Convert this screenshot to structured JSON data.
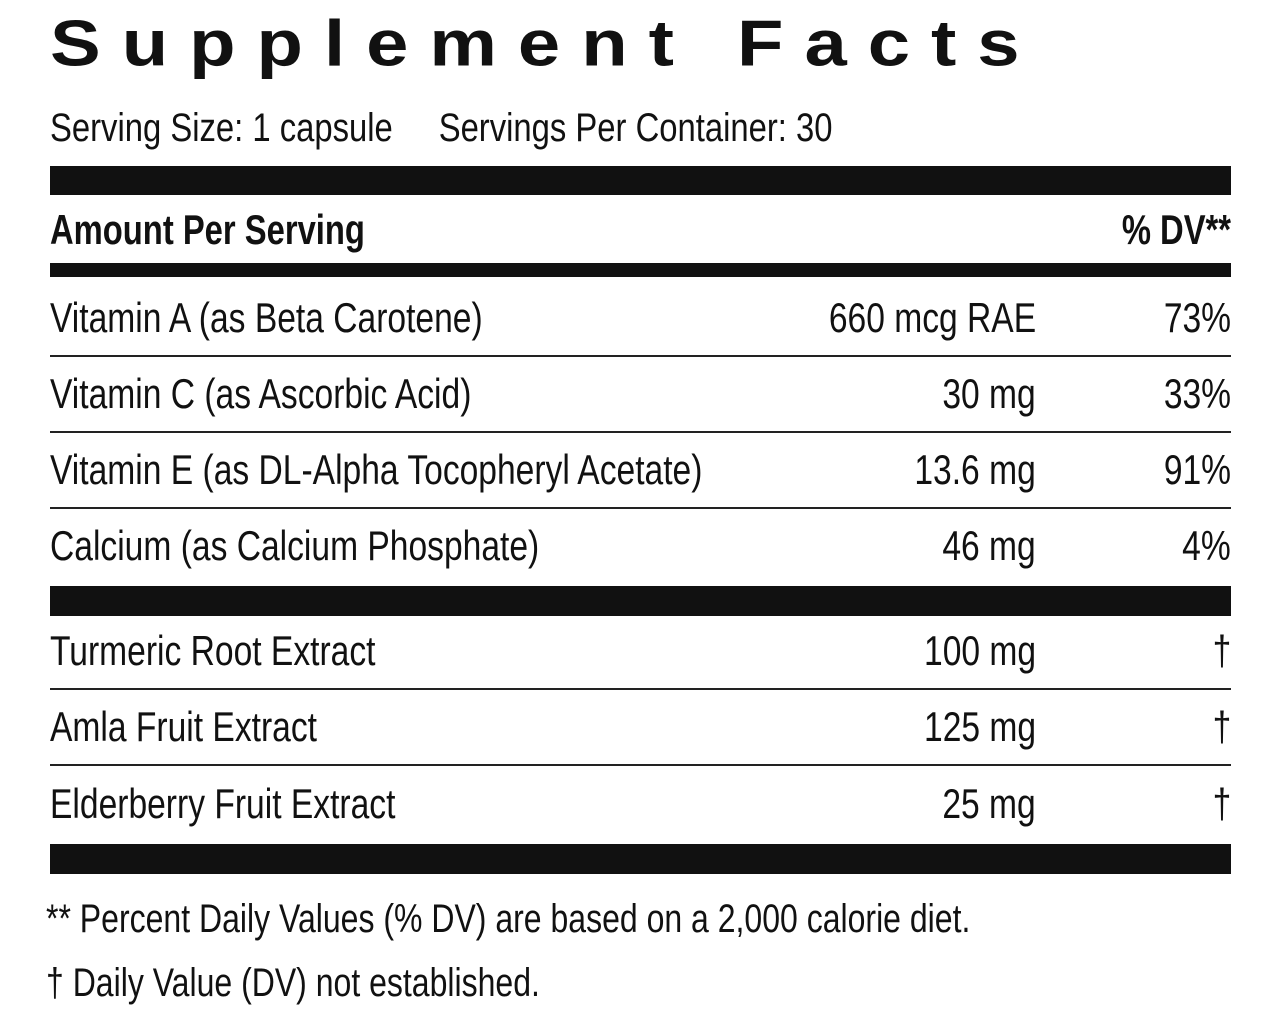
{
  "title": "Supplement Facts",
  "serving": {
    "size": "Serving Size: 1 capsule",
    "per_container": "Servings Per Container: 30"
  },
  "header": {
    "amount_label": "Amount Per Serving",
    "dv_label": "% DV**"
  },
  "vitamins": [
    {
      "name": "Vitamin A (as Beta Carotene)",
      "amount": "660 mcg RAE",
      "dv": "73%"
    },
    {
      "name": "Vitamin C (as Ascorbic Acid)",
      "amount": "30 mg",
      "dv": "33%"
    },
    {
      "name": "Vitamin E (as DL-Alpha Tocopheryl Acetate)",
      "amount": "13.6 mg",
      "dv": "91%"
    },
    {
      "name": "Calcium (as Calcium Phosphate)",
      "amount": "46 mg",
      "dv": "4%"
    }
  ],
  "extracts": [
    {
      "name": "Turmeric Root Extract",
      "amount": "100 mg",
      "dv": "†"
    },
    {
      "name": "Amla Fruit Extract",
      "amount": "125 mg",
      "dv": "†"
    },
    {
      "name": "Elderberry Fruit Extract",
      "amount": "25 mg",
      "dv": "†"
    }
  ],
  "footnotes": {
    "dv_note": "** Percent Daily Values (% DV) are based on a 2,000 calorie diet.",
    "dagger_note": "† Daily Value (DV) not established."
  }
}
